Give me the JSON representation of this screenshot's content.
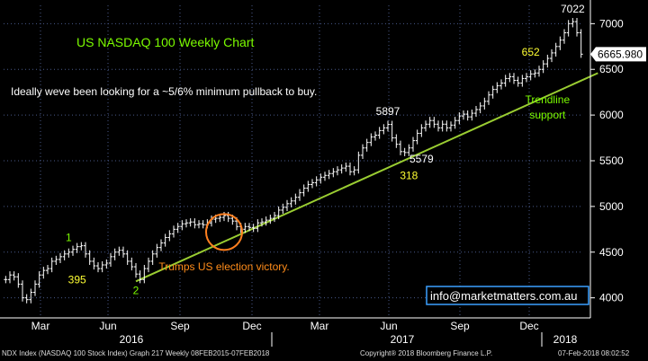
{
  "chart_data": {
    "type": "line",
    "style": "ohlc-bars",
    "title": "US NASDAQ 100 Weekly Chart",
    "subtitle": "Ideally weve been looking for a ~5/6% minimum pullback to buy.",
    "ylim": [
      3800,
      7200
    ],
    "y_ticks": [
      4000,
      4500,
      5000,
      5500,
      6000,
      6500,
      7000
    ],
    "last_price": "6665.980",
    "x_month_labels": [
      "Mar",
      "Jun",
      "Sep",
      "Dec",
      "Mar",
      "Jun",
      "Sep",
      "Dec"
    ],
    "x_year_labels": [
      "2016",
      "2017",
      "2018"
    ],
    "grid": true,
    "series": [
      {
        "values": [
          4200,
          4250,
          4230,
          4150,
          4000,
          3980,
          4060,
          4150,
          4250,
          4300,
          4320,
          4400,
          4420,
          4450,
          4480,
          4500,
          4530,
          4560,
          4570,
          4480,
          4400,
          4350,
          4320,
          4360,
          4380,
          4450,
          4500,
          4520,
          4480,
          4400,
          4340,
          4260,
          4200,
          4320,
          4400,
          4480,
          4550,
          4600,
          4660,
          4700,
          4750,
          4780,
          4810,
          4820,
          4830,
          4800,
          4810,
          4800,
          4820,
          4860,
          4870,
          4880,
          4900,
          4870,
          4840,
          4780,
          4750,
          4780,
          4770,
          4760,
          4820,
          4830,
          4850,
          4870,
          4900,
          4960,
          4990,
          5030,
          5060,
          5100,
          5150,
          5200,
          5240,
          5260,
          5290,
          5320,
          5340,
          5360,
          5380,
          5400,
          5420,
          5440,
          5380,
          5400,
          5560,
          5640,
          5700,
          5760,
          5780,
          5830,
          5860,
          5897,
          5750,
          5680,
          5600,
          5590,
          5640,
          5720,
          5800,
          5860,
          5900,
          5940,
          5900,
          5860,
          5900,
          5860,
          5890,
          5940,
          5990,
          6010,
          5980,
          6020,
          6060,
          6100,
          6150,
          6220,
          6280,
          6320,
          6350,
          6400,
          6420,
          6380,
          6350,
          6400,
          6420,
          6450,
          6460,
          6500,
          6560,
          6620,
          6680,
          6750,
          6820,
          6900,
          7000,
          7022,
          6900,
          6666
        ]
      }
    ],
    "trendline": {
      "from": [
        31,
        4180
      ],
      "to": [
        142,
        6480
      ]
    },
    "annotations": [
      {
        "text": "1",
        "color": "#7cfc00",
        "x": 15,
        "y": 4620
      },
      {
        "text": "395",
        "color": "#ffff33",
        "x": 17,
        "y": 4160
      },
      {
        "text": "2",
        "color": "#7cfc00",
        "x": 31,
        "y": 4040
      },
      {
        "text": "5897",
        "color": "#ffffff",
        "x": 91,
        "y": 6000
      },
      {
        "text": "5579",
        "color": "#ffffff",
        "x": 99,
        "y": 5480
      },
      {
        "text": "318",
        "color": "#ffff33",
        "x": 96,
        "y": 5300
      },
      {
        "text": "652",
        "color": "#ffff33",
        "x": 125,
        "y": 6650
      },
      {
        "text": "7022",
        "color": "#ffffff",
        "x": 135,
        "y": 7120
      },
      {
        "text": "Trendline",
        "color": "#7cfc00",
        "x": 129,
        "y": 6130
      },
      {
        "text": "support",
        "color": "#7cfc00",
        "x": 129,
        "y": 5960
      },
      {
        "text": "Trumps US election victory.",
        "color": "#ff8c1a",
        "x": 52,
        "y": 4300
      }
    ],
    "highlight_circle_at": [
      52,
      4720
    ],
    "watermark": "info@marketmatters.com.au"
  },
  "footer": {
    "left": "NDX Index (NASDAQ 100 Stock Index) Graph 217  Weekly 08FEB2015-07FEB2018",
    "center": "Copyright® 2018 Bloomberg Finance L.P.",
    "right": "07-Feb-2018 08:02:52"
  },
  "colors": {
    "bars": "#ffffff",
    "trendline": "#9acd32",
    "grid": "#4a5a8a",
    "title": "#7cfc00",
    "circle": "#ff7f1f",
    "watermark_border": "#3aa0ff"
  }
}
